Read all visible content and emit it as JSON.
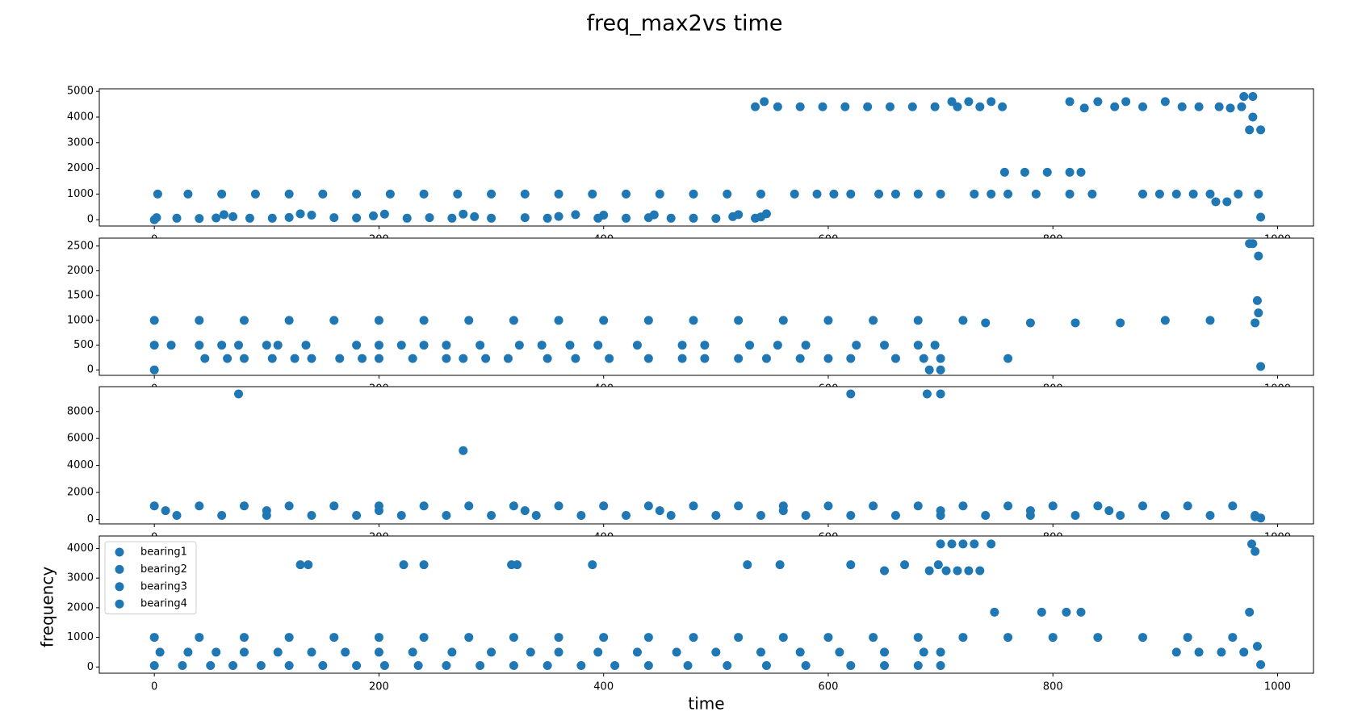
{
  "figure": {
    "title": "freq_max2vs time",
    "xlabel": "time",
    "ylabel": "frequency"
  },
  "chart_data": [
    {
      "type": "scatter",
      "xlim": [
        -49,
        1032
      ],
      "xticks": [
        0,
        200,
        400,
        600,
        800,
        1000
      ],
      "ylim": [
        -245,
        5100
      ],
      "yticks": [
        0,
        1000,
        2000,
        3000,
        4000,
        5000
      ],
      "series": [
        {
          "color": "#1f77b4",
          "x": [
            0,
            2,
            20,
            40,
            55,
            62,
            70,
            85,
            105,
            120,
            130,
            140,
            160,
            180,
            195,
            205,
            225,
            245,
            265,
            275,
            285,
            300,
            330,
            350,
            360,
            375,
            395,
            400,
            420,
            440,
            445,
            460,
            480,
            500,
            515,
            520,
            535,
            540,
            545,
            3,
            30,
            60,
            90,
            120,
            150,
            180,
            210,
            240,
            270,
            300,
            330,
            360,
            390,
            420,
            450,
            480,
            510,
            540,
            535,
            555,
            575,
            595,
            615,
            635,
            655,
            675,
            695,
            715,
            735,
            755,
            543,
            710,
            725,
            745,
            570,
            590,
            605,
            620,
            645,
            660,
            680,
            700,
            730,
            745,
            760,
            757,
            775,
            795,
            815,
            825,
            815,
            828,
            840,
            855,
            865,
            880,
            785,
            815,
            835,
            880,
            895,
            910,
            925,
            940,
            965,
            983,
            900,
            915,
            930,
            948,
            958,
            968,
            945,
            955,
            970,
            978,
            975,
            985,
            978,
            985
          ],
          "values": [
            0,
            80,
            60,
            50,
            70,
            200,
            120,
            60,
            60,
            90,
            230,
            180,
            80,
            70,
            150,
            220,
            60,
            80,
            60,
            220,
            120,
            60,
            80,
            60,
            130,
            200,
            60,
            180,
            60,
            80,
            190,
            60,
            60,
            50,
            120,
            200,
            60,
            110,
            230,
            1000,
            1000,
            1000,
            1000,
            1000,
            1000,
            1000,
            1000,
            1000,
            1000,
            1000,
            1000,
            1000,
            1000,
            1000,
            1000,
            1000,
            1000,
            1000,
            4400,
            4400,
            4400,
            4400,
            4400,
            4400,
            4400,
            4400,
            4400,
            4400,
            4400,
            4400,
            4600,
            4600,
            4600,
            4600,
            1000,
            1000,
            1000,
            1000,
            1000,
            1000,
            1000,
            1000,
            1000,
            1000,
            1000,
            1850,
            1850,
            1850,
            1850,
            1850,
            4600,
            4350,
            4600,
            4400,
            4600,
            4400,
            1000,
            1000,
            1000,
            1000,
            1000,
            1000,
            1000,
            1000,
            1000,
            1000,
            4600,
            4400,
            4400,
            4400,
            4350,
            4400,
            700,
            700,
            4800,
            4800,
            3500,
            3500,
            4000,
            100
          ]
        }
      ]
    },
    {
      "type": "scatter",
      "xlim": [
        -49,
        1032
      ],
      "xticks": [
        0,
        200,
        400,
        600,
        800,
        1000
      ],
      "ylim": [
        -110,
        2660
      ],
      "yticks": [
        0,
        500,
        1000,
        1500,
        2000,
        2500
      ],
      "series": [
        {
          "color": "#1f77b4",
          "x": [
            0,
            40,
            80,
            120,
            160,
            200,
            240,
            280,
            320,
            360,
            400,
            440,
            480,
            520,
            560,
            600,
            640,
            680,
            720,
            740,
            780,
            820,
            860,
            900,
            940,
            980,
            0,
            15,
            40,
            60,
            75,
            100,
            110,
            135,
            180,
            200,
            220,
            240,
            260,
            290,
            325,
            345,
            370,
            395,
            430,
            470,
            490,
            530,
            555,
            580,
            625,
            650,
            680,
            695,
            45,
            65,
            80,
            105,
            125,
            140,
            165,
            185,
            200,
            230,
            260,
            275,
            295,
            315,
            350,
            375,
            405,
            440,
            470,
            490,
            520,
            545,
            575,
            600,
            620,
            660,
            685,
            700,
            760,
            0,
            690,
            700,
            975,
            978,
            983,
            982,
            983,
            985
          ],
          "values": [
            1000,
            1000,
            1000,
            1000,
            1000,
            1000,
            1000,
            1000,
            1000,
            1000,
            1000,
            1000,
            1000,
            1000,
            1000,
            1000,
            1000,
            1000,
            1000,
            950,
            950,
            950,
            950,
            1000,
            1000,
            950,
            500,
            500,
            500,
            500,
            500,
            500,
            500,
            500,
            500,
            500,
            500,
            500,
            500,
            500,
            500,
            500,
            500,
            500,
            500,
            500,
            500,
            500,
            500,
            500,
            500,
            500,
            500,
            500,
            230,
            230,
            230,
            230,
            230,
            230,
            230,
            230,
            230,
            230,
            230,
            230,
            230,
            230,
            230,
            230,
            230,
            230,
            230,
            230,
            230,
            230,
            230,
            230,
            230,
            230,
            230,
            230,
            230,
            0,
            0,
            0,
            2550,
            2550,
            2300,
            1400,
            1150,
            70
          ]
        }
      ]
    },
    {
      "type": "scatter",
      "xlim": [
        -49,
        1032
      ],
      "xticks": [
        0,
        200,
        400,
        600,
        800,
        1000
      ],
      "ylim": [
        -330,
        9840
      ],
      "yticks": [
        0,
        2000,
        4000,
        6000,
        8000
      ],
      "series": [
        {
          "color": "#1f77b4",
          "x": [
            0,
            40,
            80,
            120,
            160,
            200,
            240,
            280,
            320,
            360,
            400,
            440,
            480,
            520,
            560,
            600,
            640,
            680,
            720,
            760,
            800,
            840,
            880,
            920,
            960,
            20,
            60,
            100,
            140,
            180,
            220,
            260,
            300,
            340,
            380,
            420,
            460,
            500,
            540,
            580,
            620,
            660,
            700,
            740,
            780,
            820,
            860,
            900,
            940,
            980,
            10,
            100,
            200,
            330,
            450,
            560,
            700,
            780,
            850,
            75,
            620,
            688,
            700,
            275,
            980,
            985
          ],
          "values": [
            1000,
            1000,
            1000,
            1000,
            1000,
            1000,
            1000,
            1000,
            1000,
            1000,
            1000,
            1000,
            1000,
            1000,
            1000,
            1000,
            1000,
            1000,
            1000,
            1000,
            1000,
            1000,
            1000,
            1000,
            1000,
            300,
            300,
            300,
            300,
            300,
            300,
            300,
            300,
            300,
            300,
            300,
            300,
            300,
            300,
            300,
            300,
            300,
            300,
            300,
            300,
            300,
            300,
            300,
            300,
            300,
            650,
            650,
            650,
            650,
            650,
            650,
            650,
            650,
            650,
            9300,
            9300,
            9300,
            9300,
            5100,
            200,
            100
          ]
        }
      ]
    },
    {
      "type": "scatter",
      "xlim": [
        -49,
        1032
      ],
      "xticks": [
        0,
        200,
        400,
        600,
        800,
        1000
      ],
      "ylim": [
        -210,
        4420
      ],
      "yticks": [
        0,
        1000,
        2000,
        3000,
        4000
      ],
      "legend": "upper left",
      "legend_labels": [
        "bearing1",
        "bearing2",
        "bearing3",
        "bearing4"
      ],
      "series": [
        {
          "color": "#1f77b4",
          "x": [
            0,
            40,
            80,
            120,
            160,
            200,
            240,
            280,
            320,
            360,
            400,
            440,
            480,
            520,
            560,
            600,
            640,
            680,
            720,
            760,
            800,
            840,
            880,
            920,
            960,
            5,
            30,
            55,
            80,
            110,
            140,
            170,
            200,
            230,
            265,
            300,
            335,
            360,
            395,
            430,
            465,
            500,
            540,
            575,
            610,
            650,
            685,
            700,
            910,
            930,
            950,
            970,
            0,
            25,
            50,
            70,
            95,
            120,
            150,
            180,
            205,
            235,
            260,
            290,
            320,
            350,
            380,
            410,
            440,
            475,
            510,
            545,
            580,
            620,
            650,
            680,
            700,
            130,
            137,
            222,
            240,
            318,
            323,
            390,
            528,
            557,
            620,
            668,
            698,
            650,
            690,
            705,
            715,
            725,
            735,
            700,
            710,
            720,
            730,
            745,
            977,
            748,
            790,
            812,
            825,
            975,
            980,
            982,
            985
          ],
          "values": [
            1000,
            1000,
            1000,
            1000,
            1000,
            1000,
            1000,
            1000,
            1000,
            1000,
            1000,
            1000,
            1000,
            1000,
            1000,
            1000,
            1000,
            1000,
            1000,
            1000,
            1000,
            1000,
            1000,
            1000,
            1000,
            500,
            500,
            500,
            500,
            500,
            500,
            500,
            500,
            500,
            500,
            500,
            500,
            500,
            500,
            500,
            500,
            500,
            500,
            500,
            500,
            500,
            500,
            500,
            500,
            500,
            500,
            500,
            50,
            50,
            50,
            50,
            50,
            50,
            50,
            50,
            50,
            50,
            50,
            50,
            50,
            50,
            50,
            50,
            50,
            50,
            50,
            50,
            50,
            50,
            50,
            50,
            50,
            3450,
            3450,
            3450,
            3450,
            3450,
            3450,
            3450,
            3450,
            3450,
            3450,
            3450,
            3450,
            3250,
            3250,
            3250,
            3250,
            3250,
            3250,
            4150,
            4150,
            4150,
            4150,
            4150,
            4150,
            1850,
            1850,
            1850,
            1850,
            1850,
            3900,
            700,
            80
          ]
        }
      ]
    }
  ]
}
